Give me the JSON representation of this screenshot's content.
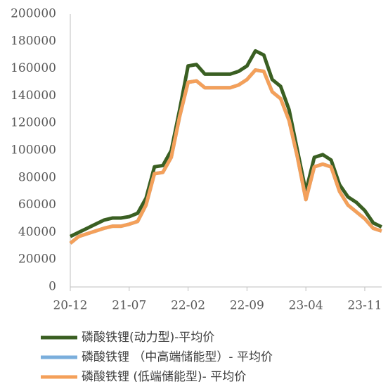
{
  "chart_data": {
    "type": "line",
    "categories": [
      "20-12",
      null,
      null,
      null,
      null,
      null,
      null,
      "21-07",
      null,
      null,
      null,
      null,
      null,
      null,
      "22-02",
      null,
      null,
      null,
      null,
      null,
      null,
      "22-09",
      null,
      null,
      null,
      null,
      null,
      null,
      "23-04",
      null,
      null,
      null,
      null,
      null,
      null,
      "23-11",
      null,
      null
    ],
    "series": [
      {
        "name": "磷酸铁锂(动力型)-平均价",
        "color": "#3a5f22",
        "values": [
          37000,
          40000,
          43000,
          46000,
          49000,
          50500,
          50500,
          51500,
          54000,
          65000,
          88000,
          89000,
          100000,
          130000,
          162000,
          163000,
          156000,
          156000,
          156000,
          156000,
          158000,
          162000,
          173000,
          170000,
          152000,
          147000,
          130000,
          100000,
          70000,
          95000,
          97000,
          93000,
          75000,
          66000,
          62000,
          56000,
          47000,
          44000
        ]
      },
      {
        "name": "磷酸铁锂 （中高端储能型）- 平均价",
        "color": "#7aaedc",
        "values": [
          32000,
          37000,
          39000,
          41000,
          43000,
          44500,
          44500,
          46000,
          48000,
          60000,
          83000,
          84000,
          95000,
          125000,
          150000,
          151000,
          146000,
          146000,
          146000,
          146000,
          148000,
          152000,
          159000,
          158000,
          143000,
          138000,
          122000,
          95000,
          64000,
          88000,
          90000,
          88000,
          70000,
          60000,
          55000,
          50000,
          43000,
          41000
        ]
      },
      {
        "name": "磷酸铁锂 (低端储能型)- 平均价",
        "color": "#f4a05a",
        "values": [
          32000,
          37000,
          39000,
          41000,
          43000,
          44500,
          44500,
          46000,
          48000,
          60000,
          83000,
          84000,
          95000,
          125000,
          150000,
          151000,
          146000,
          146000,
          146000,
          146000,
          148000,
          152000,
          159000,
          158000,
          143000,
          138000,
          122000,
          95000,
          64000,
          88000,
          90000,
          88000,
          70000,
          60000,
          55000,
          50000,
          43000,
          41000
        ]
      }
    ],
    "ylim": [
      0,
      200000
    ],
    "yticks": [
      0,
      20000,
      40000,
      60000,
      80000,
      100000,
      120000,
      140000,
      160000,
      180000,
      200000
    ]
  }
}
